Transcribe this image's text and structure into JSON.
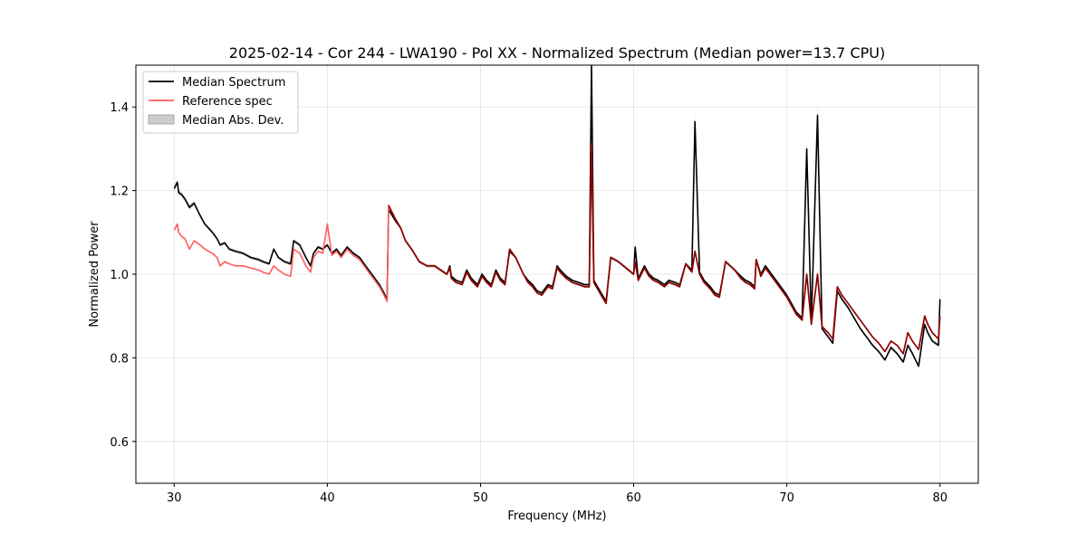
{
  "chart_data": {
    "type": "line",
    "title": "2025-02-14 - Cor 244 - LWA190 - Pol XX - Normalized Spectrum (Median power=13.7 CPU)",
    "xlabel": "Frequency (MHz)",
    "ylabel": "Normalized Power",
    "xlim": [
      27.5,
      82.5
    ],
    "ylim": [
      0.5,
      1.5
    ],
    "xticks": [
      30,
      40,
      50,
      60,
      70,
      80
    ],
    "yticks": [
      0.6,
      0.8,
      1.0,
      1.2,
      1.4
    ],
    "xtick_labels": [
      "30",
      "40",
      "50",
      "60",
      "70",
      "80"
    ],
    "ytick_labels": [
      "0.6",
      "0.8",
      "1.0",
      "1.2",
      "1.4"
    ],
    "grid": true,
    "legend": {
      "position": "upper-left",
      "entries": [
        "Median Spectrum",
        "Reference spec",
        "Median Abs. Dev."
      ]
    },
    "colors": {
      "median": "#000000",
      "reference": "#ff5c5c",
      "mad": "#bfbfbf",
      "overlap": "#8b0000"
    },
    "series": [
      {
        "name": "Median Spectrum",
        "x": [
          30.0,
          30.2,
          30.3,
          30.5,
          30.7,
          31.0,
          31.3,
          31.7,
          32.0,
          32.5,
          32.8,
          33.0,
          33.3,
          33.6,
          34.0,
          34.5,
          35.0,
          35.5,
          35.8,
          36.2,
          36.5,
          36.8,
          37.2,
          37.6,
          37.8,
          38.2,
          38.6,
          38.9,
          39.1,
          39.4,
          39.7,
          40.0,
          40.3,
          40.6,
          40.9,
          41.3,
          41.7,
          42.1,
          42.5,
          42.9,
          43.1,
          43.4,
          43.7,
          43.9,
          44.0,
          44.4,
          44.8,
          45.1,
          45.5,
          46.0,
          46.5,
          47.0,
          47.4,
          47.8,
          48.0,
          48.1,
          48.4,
          48.8,
          49.1,
          49.4,
          49.8,
          50.1,
          50.4,
          50.7,
          51.0,
          51.3,
          51.6,
          51.9,
          52.3,
          52.8,
          53.1,
          53.4,
          53.7,
          54.0,
          54.4,
          54.7,
          55.0,
          55.2,
          55.6,
          56.0,
          56.4,
          56.8,
          57.1,
          57.25,
          57.4,
          57.8,
          58.2,
          58.5,
          59.0,
          59.5,
          60.0,
          60.1,
          60.3,
          60.7,
          61.0,
          61.3,
          61.6,
          62.0,
          62.3,
          62.7,
          63.0,
          63.4,
          63.8,
          64.0,
          64.3,
          64.6,
          65.0,
          65.3,
          65.6,
          66.0,
          66.3,
          66.6,
          67.0,
          67.3,
          67.6,
          67.9,
          68.0,
          68.3,
          68.6,
          69.0,
          69.3,
          69.6,
          70.0,
          70.3,
          70.6,
          71.0,
          71.3,
          71.6,
          72.0,
          72.3,
          72.7,
          73.0,
          73.3,
          73.6,
          74.0,
          74.4,
          74.8,
          75.2,
          75.6,
          76.0,
          76.4,
          76.8,
          77.2,
          77.6,
          77.9,
          78.2,
          78.6,
          79.0,
          79.2,
          79.5,
          79.9,
          80.0
        ],
        "values": [
          1.205,
          1.22,
          1.195,
          1.19,
          1.18,
          1.16,
          1.17,
          1.14,
          1.12,
          1.1,
          1.085,
          1.07,
          1.075,
          1.06,
          1.055,
          1.05,
          1.04,
          1.035,
          1.03,
          1.025,
          1.06,
          1.04,
          1.03,
          1.025,
          1.08,
          1.07,
          1.04,
          1.02,
          1.05,
          1.065,
          1.06,
          1.07,
          1.05,
          1.06,
          1.045,
          1.065,
          1.05,
          1.04,
          1.02,
          1.0,
          0.99,
          0.975,
          0.955,
          0.94,
          1.155,
          1.13,
          1.11,
          1.08,
          1.06,
          1.03,
          1.02,
          1.02,
          1.01,
          1.0,
          1.02,
          0.995,
          0.985,
          0.98,
          1.01,
          0.99,
          0.975,
          1.0,
          0.985,
          0.975,
          1.01,
          0.99,
          0.98,
          1.055,
          1.04,
          1.0,
          0.985,
          0.975,
          0.96,
          0.955,
          0.975,
          0.97,
          1.02,
          1.01,
          0.995,
          0.985,
          0.98,
          0.975,
          0.975,
          1.5,
          0.985,
          0.96,
          0.935,
          1.04,
          1.03,
          1.015,
          1.0,
          1.065,
          0.99,
          1.02,
          1.0,
          0.99,
          0.985,
          0.975,
          0.985,
          0.98,
          0.975,
          1.025,
          1.01,
          1.365,
          1.005,
          0.985,
          0.97,
          0.955,
          0.95,
          1.03,
          1.02,
          1.01,
          0.995,
          0.985,
          0.98,
          0.97,
          1.035,
          1.0,
          1.02,
          1.0,
          0.985,
          0.97,
          0.95,
          0.93,
          0.91,
          0.895,
          1.3,
          0.885,
          1.38,
          0.87,
          0.85,
          0.835,
          0.96,
          0.94,
          0.92,
          0.895,
          0.87,
          0.85,
          0.83,
          0.815,
          0.795,
          0.825,
          0.81,
          0.79,
          0.83,
          0.81,
          0.78,
          0.88,
          0.86,
          0.84,
          0.83,
          0.94
        ]
      },
      {
        "name": "Reference spec",
        "x": [
          30.0,
          30.2,
          30.3,
          30.5,
          30.7,
          31.0,
          31.3,
          31.7,
          32.0,
          32.5,
          32.8,
          33.0,
          33.3,
          33.6,
          34.0,
          34.5,
          35.0,
          35.5,
          35.8,
          36.2,
          36.5,
          36.8,
          37.2,
          37.6,
          37.8,
          38.2,
          38.6,
          38.9,
          39.1,
          39.4,
          39.7,
          40.0,
          40.3,
          40.6,
          40.9,
          41.3,
          41.7,
          42.1,
          42.5,
          42.9,
          43.1,
          43.4,
          43.7,
          43.9,
          44.0,
          44.4,
          44.8,
          45.1,
          45.5,
          46.0,
          46.5,
          47.0,
          47.4,
          47.8,
          48.0,
          48.1,
          48.4,
          48.8,
          49.1,
          49.4,
          49.8,
          50.1,
          50.4,
          50.7,
          51.0,
          51.3,
          51.6,
          51.9,
          52.3,
          52.8,
          53.1,
          53.4,
          53.7,
          54.0,
          54.4,
          54.7,
          55.0,
          55.2,
          55.6,
          56.0,
          56.4,
          56.8,
          57.1,
          57.25,
          57.4,
          57.8,
          58.2,
          58.5,
          59.0,
          59.5,
          60.0,
          60.1,
          60.3,
          60.7,
          61.0,
          61.3,
          61.6,
          62.0,
          62.3,
          62.7,
          63.0,
          63.4,
          63.8,
          64.0,
          64.3,
          64.6,
          65.0,
          65.3,
          65.6,
          66.0,
          66.3,
          66.6,
          67.0,
          67.3,
          67.6,
          67.9,
          68.0,
          68.3,
          68.6,
          69.0,
          69.3,
          69.6,
          70.0,
          70.3,
          70.6,
          71.0,
          71.3,
          71.6,
          72.0,
          72.3,
          72.7,
          73.0,
          73.3,
          73.6,
          74.0,
          74.4,
          74.8,
          75.2,
          75.6,
          76.0,
          76.4,
          76.8,
          77.2,
          77.6,
          77.9,
          78.2,
          78.6,
          79.0,
          79.2,
          79.5,
          79.9,
          80.0
        ],
        "values": [
          1.105,
          1.12,
          1.1,
          1.09,
          1.085,
          1.06,
          1.08,
          1.07,
          1.06,
          1.05,
          1.04,
          1.02,
          1.03,
          1.025,
          1.02,
          1.02,
          1.015,
          1.01,
          1.005,
          1.0,
          1.02,
          1.01,
          1.0,
          0.995,
          1.06,
          1.05,
          1.02,
          1.005,
          1.04,
          1.055,
          1.05,
          1.12,
          1.045,
          1.055,
          1.04,
          1.06,
          1.045,
          1.035,
          1.015,
          0.995,
          0.985,
          0.97,
          0.95,
          0.935,
          1.165,
          1.135,
          1.11,
          1.08,
          1.06,
          1.03,
          1.02,
          1.02,
          1.01,
          1.0,
          1.015,
          0.99,
          0.98,
          0.975,
          1.005,
          0.985,
          0.97,
          0.995,
          0.98,
          0.97,
          1.005,
          0.985,
          0.975,
          1.06,
          1.04,
          1.0,
          0.98,
          0.97,
          0.955,
          0.95,
          0.97,
          0.965,
          1.015,
          1.005,
          0.99,
          0.98,
          0.975,
          0.97,
          0.97,
          1.31,
          0.98,
          0.955,
          0.93,
          1.04,
          1.03,
          1.015,
          1.0,
          1.03,
          0.985,
          1.015,
          0.995,
          0.985,
          0.98,
          0.97,
          0.98,
          0.975,
          0.97,
          1.025,
          1.005,
          1.055,
          1.0,
          0.98,
          0.965,
          0.95,
          0.945,
          1.03,
          1.02,
          1.01,
          0.99,
          0.98,
          0.975,
          0.965,
          1.035,
          0.995,
          1.015,
          0.995,
          0.98,
          0.965,
          0.945,
          0.925,
          0.905,
          0.89,
          1.0,
          0.88,
          1.0,
          0.875,
          0.86,
          0.845,
          0.97,
          0.95,
          0.93,
          0.91,
          0.89,
          0.87,
          0.85,
          0.835,
          0.815,
          0.84,
          0.83,
          0.81,
          0.86,
          0.84,
          0.82,
          0.9,
          0.88,
          0.86,
          0.845,
          0.9
        ]
      }
    ]
  }
}
